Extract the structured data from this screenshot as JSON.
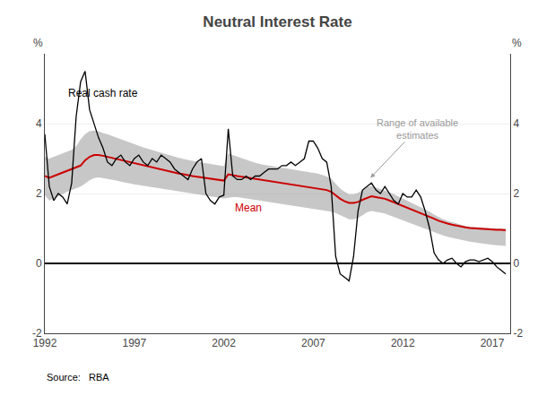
{
  "chart_data": {
    "type": "line",
    "title": "Neutral Interest Rate",
    "ylabel": "%",
    "y2label": "%",
    "xlim": [
      1992,
      2018
    ],
    "xticks": [
      1992,
      1997,
      2002,
      2007,
      2012,
      2017
    ],
    "ylim": [
      -2,
      6
    ],
    "yticks": [
      -2,
      0,
      2,
      4
    ],
    "y2lim": [
      -2,
      6
    ],
    "y2ticks": [
      -2,
      0,
      2,
      4
    ],
    "grid": true,
    "x": [
      1992.0,
      1992.25,
      1992.5,
      1992.75,
      1993.0,
      1993.25,
      1993.5,
      1993.75,
      1994.0,
      1994.25,
      1994.5,
      1994.75,
      1995.0,
      1995.25,
      1995.5,
      1995.75,
      1996.0,
      1996.25,
      1996.5,
      1996.75,
      1997.0,
      1997.25,
      1997.5,
      1997.75,
      1998.0,
      1998.25,
      1998.5,
      1998.75,
      1999.0,
      1999.25,
      1999.5,
      1999.75,
      2000.0,
      2000.25,
      2000.5,
      2000.75,
      2001.0,
      2001.25,
      2001.5,
      2001.75,
      2002.0,
      2002.25,
      2002.5,
      2002.75,
      2003.0,
      2003.25,
      2003.5,
      2003.75,
      2004.0,
      2004.25,
      2004.5,
      2004.75,
      2005.0,
      2005.25,
      2005.5,
      2005.75,
      2006.0,
      2006.25,
      2006.5,
      2006.75,
      2007.0,
      2007.25,
      2007.5,
      2007.75,
      2008.0,
      2008.25,
      2008.5,
      2008.75,
      2009.0,
      2009.25,
      2009.5,
      2009.75,
      2010.0,
      2010.25,
      2010.5,
      2010.75,
      2011.0,
      2011.25,
      2011.5,
      2011.75,
      2012.0,
      2012.25,
      2012.5,
      2012.75,
      2013.0,
      2013.25,
      2013.5,
      2013.75,
      2014.0,
      2014.25,
      2014.5,
      2014.75,
      2015.0,
      2015.25,
      2015.5,
      2015.75,
      2016.0,
      2016.25,
      2016.5,
      2016.75,
      2017.0,
      2017.25,
      2017.5,
      2017.75
    ],
    "series": [
      {
        "type": "band",
        "color": "#999999",
        "upper": [
          3.05,
          3.0,
          3.05,
          3.1,
          3.15,
          3.2,
          3.25,
          3.35,
          3.55,
          3.7,
          3.78,
          3.8,
          3.78,
          3.73,
          3.7,
          3.65,
          3.6,
          3.55,
          3.5,
          3.45,
          3.4,
          3.36,
          3.32,
          3.28,
          3.24,
          3.2,
          3.16,
          3.12,
          3.08,
          3.05,
          3.02,
          2.99,
          2.96,
          2.94,
          2.91,
          2.89,
          2.87,
          2.84,
          2.82,
          2.8,
          2.78,
          3.15,
          3.1,
          3.05,
          3.0,
          2.96,
          2.92,
          2.88,
          2.84,
          2.82,
          2.8,
          2.78,
          2.76,
          2.74,
          2.72,
          2.7,
          2.68,
          2.66,
          2.64,
          2.62,
          2.6,
          2.57,
          2.53,
          2.49,
          2.42,
          2.28,
          2.14,
          2.05,
          1.98,
          1.98,
          2.02,
          2.1,
          2.18,
          2.22,
          2.18,
          2.14,
          2.1,
          2.04,
          1.98,
          1.92,
          1.86,
          1.8,
          1.74,
          1.68,
          1.62,
          1.55,
          1.48,
          1.4,
          1.32,
          1.26,
          1.22,
          1.18,
          1.14,
          1.1,
          1.07,
          1.05,
          1.04,
          1.03,
          1.02,
          1.01,
          1.01,
          1.0,
          1.0,
          1.0
        ],
        "lower": [
          1.95,
          1.8,
          1.85,
          1.92,
          1.98,
          2.05,
          2.1,
          2.15,
          2.2,
          2.28,
          2.38,
          2.44,
          2.46,
          2.44,
          2.42,
          2.4,
          2.37,
          2.34,
          2.32,
          2.29,
          2.26,
          2.24,
          2.22,
          2.2,
          2.18,
          2.16,
          2.14,
          2.12,
          2.1,
          2.08,
          2.06,
          2.04,
          2.02,
          2.0,
          1.98,
          1.96,
          1.94,
          1.92,
          1.9,
          1.88,
          1.86,
          1.88,
          1.9,
          1.9,
          1.88,
          1.86,
          1.84,
          1.82,
          1.8,
          1.78,
          1.76,
          1.74,
          1.72,
          1.7,
          1.68,
          1.66,
          1.64,
          1.62,
          1.6,
          1.58,
          1.56,
          1.54,
          1.52,
          1.5,
          1.48,
          1.44,
          1.38,
          1.32,
          1.26,
          1.26,
          1.3,
          1.38,
          1.46,
          1.5,
          1.48,
          1.46,
          1.43,
          1.38,
          1.33,
          1.28,
          1.23,
          1.18,
          1.13,
          1.08,
          1.03,
          0.98,
          0.93,
          0.88,
          0.84,
          0.8,
          0.76,
          0.73,
          0.7,
          0.67,
          0.64,
          0.62,
          0.6,
          0.58,
          0.56,
          0.54,
          0.53,
          0.52,
          0.51,
          0.5
        ]
      },
      {
        "name": "Mean",
        "color": "#cc0000",
        "values": [
          2.5,
          2.45,
          2.5,
          2.55,
          2.6,
          2.65,
          2.7,
          2.75,
          2.8,
          2.95,
          3.05,
          3.1,
          3.1,
          3.08,
          3.05,
          3.02,
          2.98,
          2.95,
          2.92,
          2.89,
          2.86,
          2.83,
          2.8,
          2.77,
          2.74,
          2.71,
          2.68,
          2.65,
          2.62,
          2.6,
          2.57,
          2.55,
          2.52,
          2.5,
          2.48,
          2.46,
          2.44,
          2.42,
          2.4,
          2.38,
          2.37,
          2.55,
          2.52,
          2.5,
          2.48,
          2.46,
          2.44,
          2.42,
          2.4,
          2.38,
          2.36,
          2.34,
          2.32,
          2.3,
          2.28,
          2.26,
          2.24,
          2.22,
          2.2,
          2.18,
          2.16,
          2.14,
          2.12,
          2.1,
          2.05,
          1.95,
          1.85,
          1.78,
          1.73,
          1.73,
          1.76,
          1.82,
          1.88,
          1.92,
          1.9,
          1.88,
          1.85,
          1.8,
          1.75,
          1.7,
          1.65,
          1.6,
          1.55,
          1.5,
          1.45,
          1.4,
          1.34,
          1.28,
          1.22,
          1.17,
          1.14,
          1.11,
          1.08,
          1.05,
          1.03,
          1.01,
          1.0,
          0.99,
          0.98,
          0.97,
          0.97,
          0.96,
          0.96,
          0.95
        ]
      },
      {
        "name": "Real cash rate",
        "color": "#000000",
        "values": [
          3.7,
          2.2,
          1.8,
          2.0,
          1.9,
          1.7,
          2.3,
          4.2,
          5.2,
          5.5,
          4.4,
          4.0,
          3.6,
          3.3,
          2.9,
          2.8,
          3.0,
          3.1,
          2.9,
          2.8,
          3.0,
          3.1,
          2.9,
          2.8,
          3.0,
          2.9,
          3.1,
          3.0,
          2.9,
          2.7,
          2.6,
          2.5,
          2.4,
          2.7,
          2.9,
          3.0,
          2.0,
          1.8,
          1.7,
          1.9,
          1.95,
          3.85,
          2.5,
          2.4,
          2.4,
          2.5,
          2.4,
          2.5,
          2.5,
          2.6,
          2.7,
          2.7,
          2.7,
          2.8,
          2.8,
          2.9,
          2.8,
          2.9,
          3.0,
          3.5,
          3.5,
          3.3,
          3.0,
          2.9,
          2.2,
          0.2,
          -0.3,
          -0.4,
          -0.5,
          0.2,
          1.5,
          2.1,
          2.2,
          2.3,
          2.1,
          2.0,
          2.2,
          2.0,
          1.8,
          1.7,
          2.0,
          1.9,
          1.9,
          2.1,
          1.9,
          1.5,
          1.0,
          0.3,
          0.1,
          0.0,
          0.1,
          0.15,
          0.0,
          -0.1,
          0.05,
          0.1,
          0.1,
          0.05,
          0.1,
          0.15,
          0.05,
          -0.1,
          -0.2,
          -0.3
        ]
      }
    ],
    "annotations": [
      {
        "text": "Range of available\nestimates",
        "color": "#999999"
      },
      {
        "text": "Source:   RBA",
        "color": "#000000"
      }
    ]
  }
}
